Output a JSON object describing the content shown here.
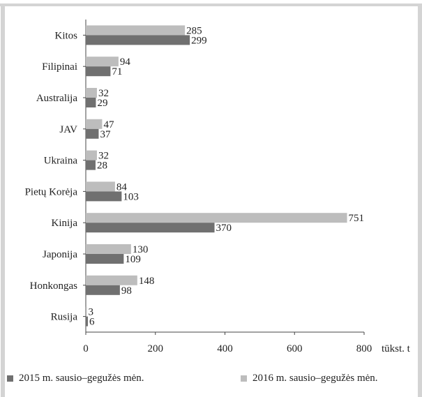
{
  "chart_data": {
    "type": "bar",
    "orientation": "horizontal",
    "categories": [
      "Kitos",
      "Filipinai",
      "Australija",
      "JAV",
      "Ukraina",
      "Pietų Korėja",
      "Kinija",
      "Japonija",
      "Honkongas",
      "Rusija"
    ],
    "series": [
      {
        "name": "2016 m. sausio–gegužės mėn.",
        "values": [
          285,
          94,
          32,
          47,
          32,
          84,
          751,
          130,
          148,
          3
        ],
        "color": "#bdbdbd"
      },
      {
        "name": "2015 m. sausio–gegužės mėn.",
        "values": [
          299,
          71,
          29,
          37,
          28,
          103,
          370,
          109,
          98,
          6
        ],
        "color": "#707070"
      }
    ],
    "xlabel": "tūkst. t",
    "xlim": [
      0,
      800
    ],
    "xticks": [
      0,
      200,
      400,
      600,
      800
    ],
    "grid": false,
    "legend_position": "bottom"
  },
  "legend": {
    "item_2015": "2015 m. sausio–gegužės mėn.",
    "item_2016": "2016 m. sausio–gegužės mėn."
  }
}
